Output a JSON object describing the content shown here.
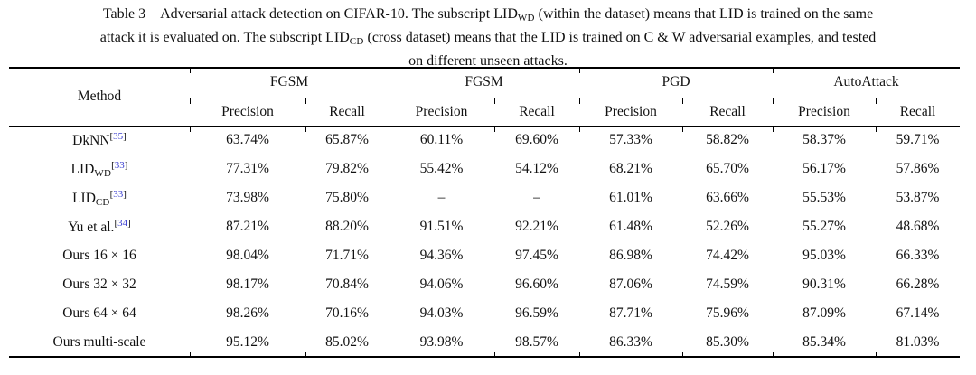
{
  "colors": {
    "background": "#ffffff",
    "text": "#111111",
    "rule": "#000000",
    "citation_link": "#3b3fd0"
  },
  "caption": {
    "lines": [
      [
        {
          "t": "Table 3 Adversarial attack detection on CIFAR-10. The subscript LID"
        },
        {
          "t": "WD",
          "sub": true
        },
        {
          "t": " (within the dataset) means that LID is trained on the same"
        }
      ],
      [
        {
          "t": "attack it is evaluated on. The subscript LID"
        },
        {
          "t": "CD",
          "sub": true
        },
        {
          "t": " (cross dataset) means that the LID is trained on C & W adversarial examples, and tested"
        }
      ],
      [
        {
          "t": "on different unseen attacks."
        }
      ]
    ]
  },
  "header": {
    "method_label": "Method",
    "groups": [
      {
        "label": "FGSM"
      },
      {
        "label": "FGSM"
      },
      {
        "label": "PGD"
      },
      {
        "label": "AutoAttack"
      }
    ],
    "subcolumns": [
      "Precision",
      "Recall"
    ]
  },
  "rows": [
    {
      "method": {
        "name": "DkNN",
        "cite": "35"
      },
      "values": [
        {
          "v": "63.74%"
        },
        {
          "v": "65.87%"
        },
        {
          "v": "60.11%"
        },
        {
          "v": "69.60%"
        },
        {
          "v": "57.33%"
        },
        {
          "v": "58.82%"
        },
        {
          "v": "58.37%"
        },
        {
          "v": "59.71%"
        }
      ]
    },
    {
      "method": {
        "name": "LID",
        "sub": "WD",
        "cite": "33"
      },
      "values": [
        {
          "v": "77.31%"
        },
        {
          "v": "79.82%"
        },
        {
          "v": "55.42%"
        },
        {
          "v": "54.12%"
        },
        {
          "v": "68.21%"
        },
        {
          "v": "65.70%"
        },
        {
          "v": "56.17%"
        },
        {
          "v": "57.86%"
        }
      ]
    },
    {
      "method": {
        "name": "LID",
        "sub": "CD",
        "cite": "33"
      },
      "values": [
        {
          "v": "73.98%"
        },
        {
          "v": "75.80%"
        },
        {
          "v": "–"
        },
        {
          "v": "–"
        },
        {
          "v": "61.01%"
        },
        {
          "v": "63.66%"
        },
        {
          "v": "55.53%"
        },
        {
          "v": "53.87%"
        }
      ]
    },
    {
      "method": {
        "name": "Yu et al.",
        "cite": "34"
      },
      "values": [
        {
          "v": "87.21%"
        },
        {
          "v": "88.20%",
          "bold": true
        },
        {
          "v": "91.51%"
        },
        {
          "v": "92.21%"
        },
        {
          "v": "61.48%"
        },
        {
          "v": "52.26%"
        },
        {
          "v": "55.27%"
        },
        {
          "v": "48.68%"
        }
      ]
    },
    {
      "method": {
        "name": "Ours 16 × 16"
      },
      "values": [
        {
          "v": "98.04%"
        },
        {
          "v": "71.71%"
        },
        {
          "v": "94.36%",
          "bold": true
        },
        {
          "v": "97.45%"
        },
        {
          "v": "86.98%"
        },
        {
          "v": "74.42%"
        },
        {
          "v": "95.03%",
          "bold": true
        },
        {
          "v": "66.33%"
        }
      ]
    },
    {
      "method": {
        "name": "Ours 32 × 32"
      },
      "values": [
        {
          "v": "98.17%"
        },
        {
          "v": "70.84%"
        },
        {
          "v": "94.06%"
        },
        {
          "v": "96.60%"
        },
        {
          "v": "87.06%"
        },
        {
          "v": "74.59%"
        },
        {
          "v": "90.31%"
        },
        {
          "v": "66.28%"
        }
      ]
    },
    {
      "method": {
        "name": "Ours 64 × 64"
      },
      "values": [
        {
          "v": "98.26%",
          "bold": true
        },
        {
          "v": "70.16%"
        },
        {
          "v": "94.03%"
        },
        {
          "v": "96.59%"
        },
        {
          "v": "87.71%",
          "bold": true
        },
        {
          "v": "75.96%"
        },
        {
          "v": "87.09%"
        },
        {
          "v": "67.14%"
        }
      ]
    },
    {
      "method": {
        "name": "Ours multi-scale"
      },
      "values": [
        {
          "v": "95.12%"
        },
        {
          "v": "85.02%"
        },
        {
          "v": "93.98%"
        },
        {
          "v": "98.57%",
          "bold": true
        },
        {
          "v": "86.33%"
        },
        {
          "v": "85.30%",
          "bold": true
        },
        {
          "v": "85.34%"
        },
        {
          "v": "81.03%",
          "bold": true
        }
      ]
    }
  ]
}
